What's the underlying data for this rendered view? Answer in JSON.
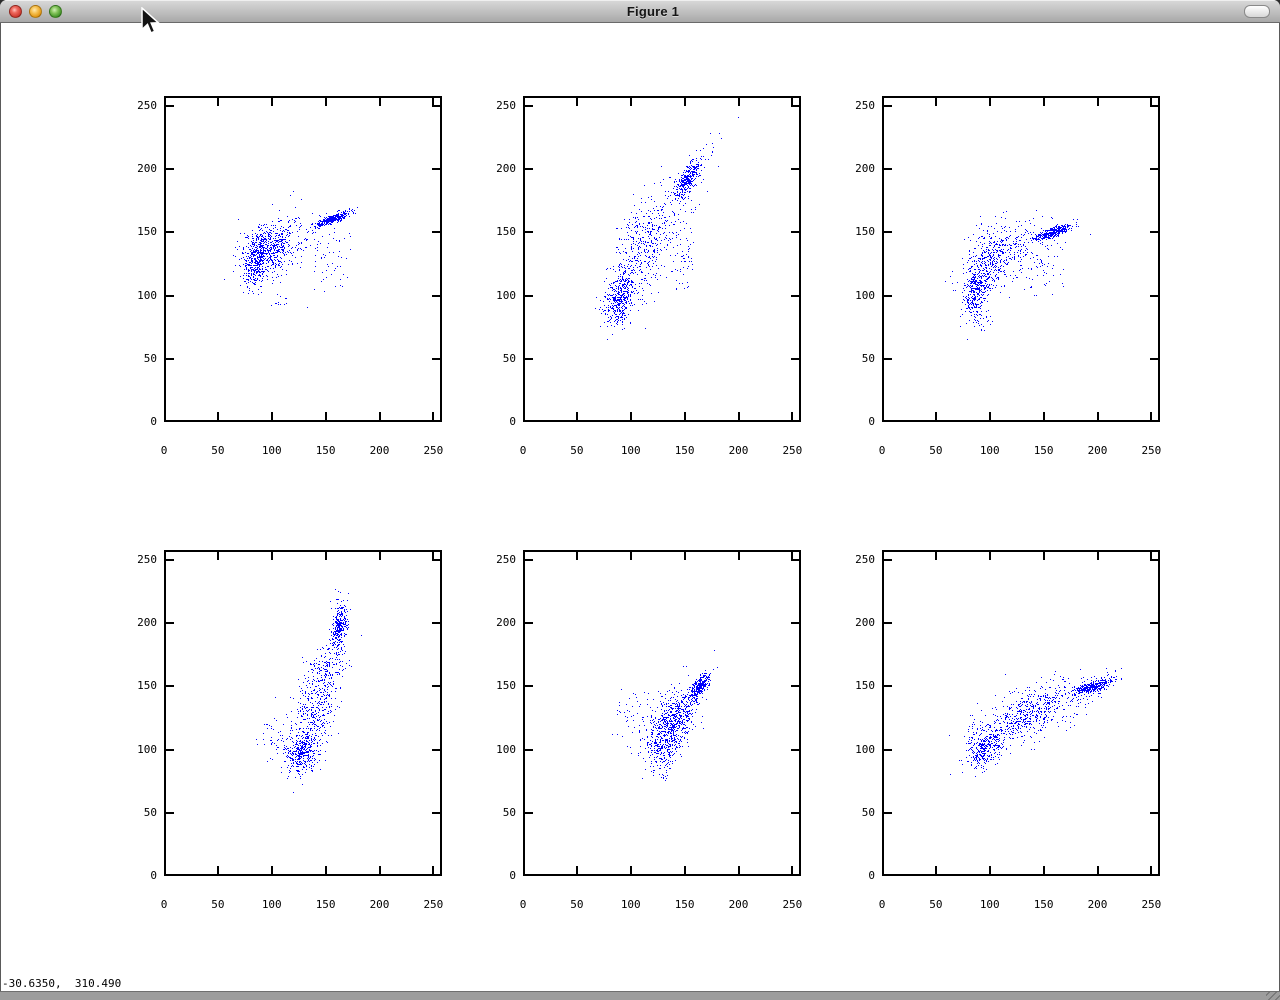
{
  "window": {
    "title": "Figure 1",
    "controls": {
      "close_color": "#cf3a30",
      "minimize_color": "#e0930f",
      "zoom_color": "#3f9125"
    }
  },
  "status_bar": {
    "coordinates": "-30.6350,  310.490"
  },
  "figure": {
    "background": "#ffffff",
    "frame_color": "#000000",
    "marker_color": "#0000ff",
    "grid": false,
    "rows": 2,
    "cols": 3
  },
  "chart_data": [
    {
      "type": "scatter",
      "position": "row1-col1",
      "title": "",
      "xlabel": "",
      "ylabel": "",
      "xlim": [
        0,
        258
      ],
      "ylim": [
        0,
        258
      ],
      "xticks": [
        0,
        50,
        100,
        150,
        200,
        250
      ],
      "yticks": [
        0,
        50,
        100,
        150,
        200,
        250
      ],
      "marker_color": "#0000ff",
      "clusters": [
        {
          "n": 550,
          "cx": 97,
          "cy": 137,
          "sx": 14,
          "sy": 11,
          "rho": 0.45
        },
        {
          "n": 300,
          "cx": 85,
          "cy": 126,
          "sx": 5,
          "sy": 10,
          "rho": 0.25
        },
        {
          "n": 380,
          "cx": 156,
          "cy": 161,
          "sx": 8,
          "sy": 3,
          "rho": 0.85
        },
        {
          "n": 120,
          "cx": 118,
          "cy": 143,
          "sx": 24,
          "sy": 14,
          "rho": 0.35
        },
        {
          "n": 45,
          "cx": 155,
          "cy": 125,
          "sx": 9,
          "sy": 13,
          "rho": 0.15
        },
        {
          "n": 12,
          "cx": 108,
          "cy": 94,
          "sx": 6,
          "sy": 4,
          "rho": 0.0
        }
      ]
    },
    {
      "type": "scatter",
      "position": "row1-col2",
      "title": "",
      "xlabel": "",
      "ylabel": "",
      "xlim": [
        0,
        258
      ],
      "ylim": [
        0,
        258
      ],
      "xticks": [
        0,
        50,
        100,
        150,
        200,
        250
      ],
      "yticks": [
        0,
        50,
        100,
        150,
        200,
        250
      ],
      "marker_color": "#0000ff",
      "clusters": [
        {
          "n": 380,
          "cx": 88,
          "cy": 97,
          "sx": 7,
          "sy": 10,
          "rho": 0.35
        },
        {
          "n": 420,
          "cx": 107,
          "cy": 131,
          "sx": 14,
          "sy": 22,
          "rho": 0.5
        },
        {
          "n": 340,
          "cx": 153,
          "cy": 193,
          "sx": 6,
          "sy": 8,
          "rho": 0.7
        },
        {
          "n": 140,
          "cx": 133,
          "cy": 163,
          "sx": 15,
          "sy": 18,
          "rho": 0.55
        },
        {
          "n": 60,
          "cx": 149,
          "cy": 131,
          "sx": 6,
          "sy": 16,
          "rho": 0.2
        },
        {
          "n": 12,
          "cx": 175,
          "cy": 218,
          "sx": 7,
          "sy": 7,
          "rho": 0.5
        }
      ]
    },
    {
      "type": "scatter",
      "position": "row1-col3",
      "title": "",
      "xlabel": "",
      "ylabel": "",
      "xlim": [
        0,
        258
      ],
      "ylim": [
        0,
        258
      ],
      "xticks": [
        0,
        50,
        100,
        150,
        200,
        250
      ],
      "yticks": [
        0,
        50,
        100,
        150,
        200,
        250
      ],
      "marker_color": "#0000ff",
      "clusters": [
        {
          "n": 320,
          "cx": 88,
          "cy": 104,
          "sx": 6,
          "sy": 10,
          "rho": 0.3
        },
        {
          "n": 420,
          "cx": 102,
          "cy": 128,
          "sx": 13,
          "sy": 14,
          "rho": 0.3
        },
        {
          "n": 380,
          "cx": 157,
          "cy": 150,
          "sx": 9,
          "sy": 3,
          "rho": 0.8
        },
        {
          "n": 130,
          "cx": 128,
          "cy": 137,
          "sx": 20,
          "sy": 12,
          "rho": 0.4
        },
        {
          "n": 45,
          "cx": 152,
          "cy": 122,
          "sx": 10,
          "sy": 13,
          "rho": 0.15
        },
        {
          "n": 25,
          "cx": 91,
          "cy": 82,
          "sx": 6,
          "sy": 4,
          "rho": 0.1
        }
      ]
    },
    {
      "type": "scatter",
      "position": "row2-col1",
      "title": "",
      "xlabel": "",
      "ylabel": "",
      "xlim": [
        0,
        258
      ],
      "ylim": [
        0,
        258
      ],
      "xticks": [
        0,
        50,
        100,
        150,
        200,
        250
      ],
      "yticks": [
        0,
        50,
        100,
        150,
        200,
        250
      ],
      "marker_color": "#0000ff",
      "clusters": [
        {
          "n": 380,
          "cx": 127,
          "cy": 98,
          "sx": 9,
          "sy": 8,
          "rho": 0.25
        },
        {
          "n": 420,
          "cx": 140,
          "cy": 133,
          "sx": 11,
          "sy": 20,
          "rho": 0.45
        },
        {
          "n": 320,
          "cx": 162,
          "cy": 196,
          "sx": 3.5,
          "sy": 9,
          "rho": 0.35
        },
        {
          "n": 130,
          "cx": 151,
          "cy": 166,
          "sx": 10,
          "sy": 14,
          "rho": 0.45
        },
        {
          "n": 55,
          "cx": 104,
          "cy": 112,
          "sx": 9,
          "sy": 11,
          "rho": 0.15
        },
        {
          "n": 10,
          "cx": 163,
          "cy": 222,
          "sx": 5,
          "sy": 6,
          "rho": 0.3
        }
      ]
    },
    {
      "type": "scatter",
      "position": "row2-col2",
      "title": "",
      "xlabel": "",
      "ylabel": "",
      "xlim": [
        0,
        258
      ],
      "ylim": [
        0,
        258
      ],
      "xticks": [
        0,
        50,
        100,
        150,
        200,
        250
      ],
      "yticks": [
        0,
        50,
        100,
        150,
        200,
        250
      ],
      "marker_color": "#0000ff",
      "clusters": [
        {
          "n": 420,
          "cx": 133,
          "cy": 111,
          "sx": 10,
          "sy": 11,
          "rho": 0.4
        },
        {
          "n": 330,
          "cx": 146,
          "cy": 130,
          "sx": 11,
          "sy": 12,
          "rho": 0.65
        },
        {
          "n": 300,
          "cx": 163,
          "cy": 150,
          "sx": 5,
          "sy": 5,
          "rho": 0.7
        },
        {
          "n": 120,
          "cx": 128,
          "cy": 124,
          "sx": 16,
          "sy": 14,
          "rho": 0.3
        },
        {
          "n": 30,
          "cx": 99,
          "cy": 130,
          "sx": 8,
          "sy": 8,
          "rho": 0.1
        },
        {
          "n": 30,
          "cx": 130,
          "cy": 85,
          "sx": 5,
          "sy": 5,
          "rho": 0.2
        }
      ]
    },
    {
      "type": "scatter",
      "position": "row2-col3",
      "title": "",
      "xlabel": "",
      "ylabel": "",
      "xlim": [
        0,
        258
      ],
      "ylim": [
        0,
        258
      ],
      "xticks": [
        0,
        50,
        100,
        150,
        200,
        250
      ],
      "yticks": [
        0,
        50,
        100,
        150,
        200,
        250
      ],
      "marker_color": "#0000ff",
      "clusters": [
        {
          "n": 320,
          "cx": 96,
          "cy": 101,
          "sx": 8,
          "sy": 8,
          "rho": 0.45
        },
        {
          "n": 480,
          "cx": 132,
          "cy": 126,
          "sx": 19,
          "sy": 12,
          "rho": 0.5
        },
        {
          "n": 380,
          "cx": 195,
          "cy": 150,
          "sx": 9,
          "sy": 3,
          "rho": 0.7
        },
        {
          "n": 150,
          "cx": 160,
          "cy": 138,
          "sx": 22,
          "sy": 11,
          "rho": 0.5
        },
        {
          "n": 45,
          "cx": 86,
          "cy": 112,
          "sx": 7,
          "sy": 9,
          "rho": 0.2
        },
        {
          "n": 14,
          "cx": 216,
          "cy": 157,
          "sx": 8,
          "sy": 4,
          "rho": 0.7
        }
      ]
    }
  ]
}
